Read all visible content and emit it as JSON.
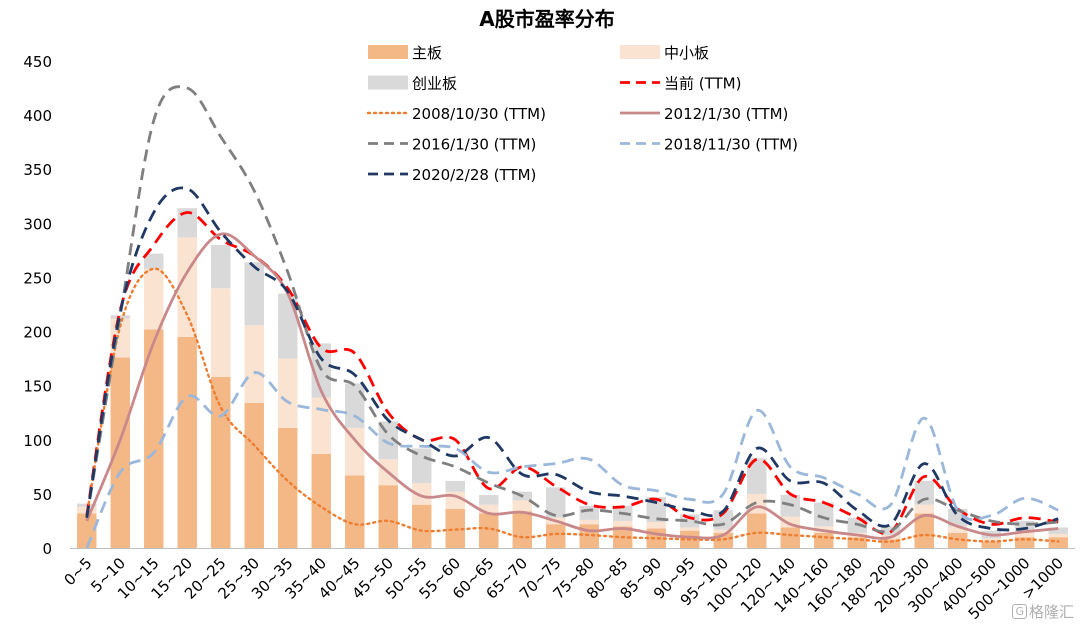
{
  "chart_data": {
    "type": "bar",
    "title": "A股市盈率分布",
    "xlabel": "",
    "ylabel": "",
    "ylim": [
      0,
      450
    ],
    "yticks": [
      0,
      50,
      100,
      150,
      200,
      250,
      300,
      350,
      400,
      450
    ],
    "categories": [
      "0~5",
      "5~10",
      "10~15",
      "15~20",
      "20~25",
      "25~30",
      "30~35",
      "35~40",
      "40~45",
      "45~50",
      "50~55",
      "55~60",
      "60~65",
      "65~70",
      "70~75",
      "75~80",
      "80~85",
      "85~90",
      "90~95",
      "95~100",
      "100~120",
      "120~140",
      "140~160",
      "160~180",
      "180~200",
      "200~300",
      "300~400",
      "400~500",
      "500~1000",
      ">1000"
    ],
    "stacked_bars": [
      {
        "name": "主板",
        "color": "#f4b887",
        "values": [
          32,
          176,
          202,
          195,
          158,
          134,
          111,
          87,
          67,
          58,
          40,
          36,
          32,
          34,
          22,
          22,
          20,
          18,
          16,
          14,
          32,
          19,
          14,
          10,
          8,
          32,
          14,
          6,
          10,
          10
        ]
      },
      {
        "name": "中小板",
        "color": "#fbe3d2",
        "values": [
          6,
          36,
          56,
          92,
          82,
          72,
          64,
          52,
          44,
          24,
          20,
          16,
          8,
          10,
          6,
          4,
          5,
          6,
          3,
          3,
          18,
          10,
          6,
          4,
          4,
          8,
          6,
          3,
          5,
          3
        ]
      },
      {
        "name": "创业板",
        "color": "#d9d9d9",
        "values": [
          3,
          3,
          14,
          27,
          40,
          58,
          60,
          50,
          41,
          35,
          32,
          10,
          9,
          8,
          28,
          13,
          14,
          23,
          12,
          18,
          33,
          20,
          22,
          14,
          8,
          22,
          16,
          7,
          10,
          6
        ]
      }
    ],
    "series": [
      {
        "name": "当前 (TTM)",
        "color": "#ff0000",
        "dash": "long",
        "values": [
          30,
          220,
          280,
          310,
          285,
          270,
          240,
          185,
          180,
          125,
          100,
          100,
          55,
          75,
          57,
          40,
          38,
          45,
          28,
          32,
          82,
          50,
          42,
          28,
          15,
          66,
          36,
          22,
          28,
          24
        ]
      },
      {
        "name": "2008/10/30 (TTM)",
        "color": "#ed7d31",
        "dash": "dot",
        "values": [
          30,
          205,
          258,
          215,
          130,
          95,
          62,
          38,
          22,
          25,
          16,
          17,
          18,
          10,
          13,
          12,
          10,
          9,
          8,
          8,
          14,
          12,
          10,
          8,
          6,
          12,
          8,
          6,
          8,
          6
        ]
      },
      {
        "name": "2012/1/30 (TTM)",
        "color": "#c9888a",
        "dash": "solid",
        "values": [
          25,
          100,
          190,
          255,
          290,
          270,
          235,
          145,
          100,
          70,
          48,
          48,
          32,
          33,
          25,
          16,
          18,
          13,
          10,
          12,
          38,
          22,
          16,
          12,
          10,
          30,
          20,
          12,
          15,
          18
        ]
      },
      {
        "name": "2016/1/30 (TTM)",
        "color": "#7f7f7f",
        "dash": "long",
        "values": [
          28,
          215,
          395,
          425,
          380,
          330,
          255,
          165,
          150,
          105,
          85,
          75,
          60,
          48,
          30,
          35,
          32,
          27,
          25,
          22,
          42,
          40,
          28,
          22,
          16,
          45,
          35,
          25,
          22,
          24
        ]
      },
      {
        "name": "2018/11/30 (TTM)",
        "color": "#9bb7d9",
        "dash": "long",
        "values": [
          0,
          70,
          88,
          140,
          122,
          162,
          135,
          128,
          122,
          97,
          94,
          92,
          70,
          75,
          78,
          82,
          58,
          53,
          45,
          50,
          127,
          75,
          65,
          50,
          40,
          120,
          35,
          30,
          46,
          35
        ]
      },
      {
        "name": "2020/2/28 (TTM)",
        "color": "#1f3864",
        "dash": "long",
        "values": [
          28,
          218,
          310,
          332,
          292,
          260,
          237,
          175,
          160,
          118,
          100,
          85,
          102,
          68,
          68,
          52,
          48,
          42,
          35,
          34,
          92,
          62,
          60,
          35,
          22,
          78,
          30,
          18,
          18,
          27
        ]
      }
    ],
    "legend": [
      {
        "label": "主板",
        "kind": "box",
        "color": "#f4b887"
      },
      {
        "label": "中小板",
        "kind": "box",
        "color": "#fbe3d2"
      },
      {
        "label": "创业板",
        "kind": "box",
        "color": "#d9d9d9"
      },
      {
        "label": "当前 (TTM)",
        "kind": "line",
        "color": "#ff0000",
        "dash": "long"
      },
      {
        "label": "2008/10/30 (TTM)",
        "kind": "line",
        "color": "#ed7d31",
        "dash": "dot"
      },
      {
        "label": "2012/1/30 (TTM)",
        "kind": "line",
        "color": "#c9888a",
        "dash": "solid"
      },
      {
        "label": "2016/1/30 (TTM)",
        "kind": "line",
        "color": "#7f7f7f",
        "dash": "long"
      },
      {
        "label": "2018/11/30 (TTM)",
        "kind": "line",
        "color": "#9bb7d9",
        "dash": "long"
      },
      {
        "label": "2020/2/28 (TTM)",
        "kind": "line",
        "color": "#1f3864",
        "dash": "long"
      }
    ],
    "legend_position": "top-center",
    "grid": false
  },
  "watermark": {
    "badge": "G",
    "text": "格隆汇"
  }
}
